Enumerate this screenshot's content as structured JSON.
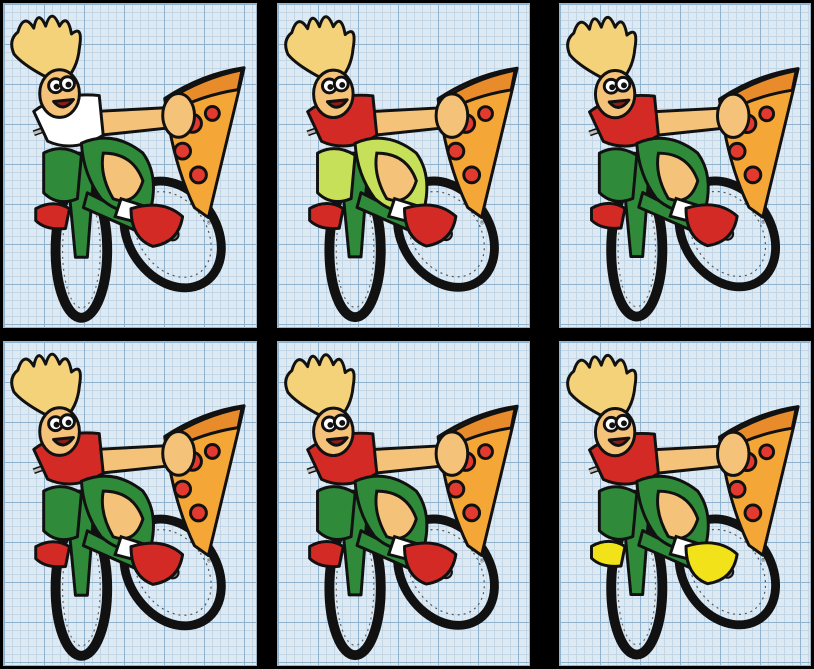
{
  "panels": [
    {
      "shirt": "#ffffff",
      "shorts": "#2f8a3a",
      "shoe": "#d42a26",
      "accent": "#e23a2f",
      "registered": "®"
    },
    {
      "shirt": "#d42a26",
      "shorts": "#c7e05a",
      "shoe": "#d42a26",
      "accent": "#e23a2f",
      "registered": "®"
    },
    {
      "shirt": "#d42a26",
      "shorts": "#2f8a3a",
      "shoe": "#d42a26",
      "accent": "#e23a2f",
      "registered": "®"
    },
    {
      "shirt": "#d42a26",
      "shorts": "#2f8a3a",
      "shoe": "#d42a26",
      "accent": "#e23a2f",
      "registered": "®"
    },
    {
      "shirt": "#d42a26",
      "shorts": "#2f8a3a",
      "shoe": "#d42a26",
      "accent": "#e23a2f",
      "registered": "®"
    },
    {
      "shirt": "#d42a26",
      "shorts": "#2f8a3a",
      "shoe": "#f2e21a",
      "accent": "#f2e21a",
      "registered": "®"
    }
  ]
}
